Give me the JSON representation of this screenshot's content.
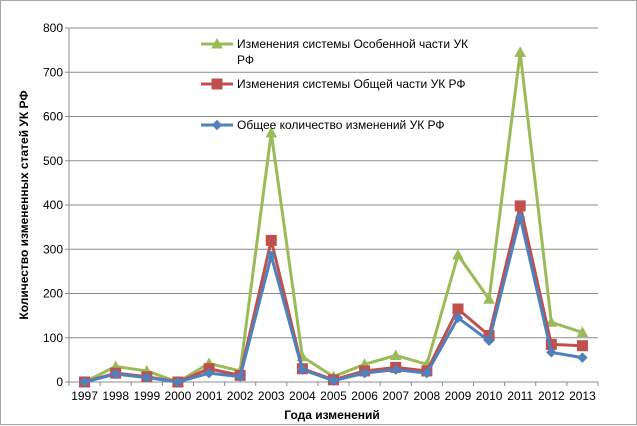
{
  "chart_data": {
    "type": "line",
    "title": "",
    "xlabel": "Года изменений",
    "ylabel": "Количество измененных статей УК РФ",
    "x": [
      "1997",
      "1998",
      "1999",
      "2000",
      "2001",
      "2002",
      "2003",
      "2004",
      "2005",
      "2006",
      "2007",
      "2008",
      "2009",
      "2010",
      "2011",
      "2012",
      "2013"
    ],
    "ylim": [
      0,
      800
    ],
    "yticks": [
      0,
      100,
      200,
      300,
      400,
      500,
      600,
      700,
      800
    ],
    "grid": true,
    "legend_position": "top-center",
    "series": [
      {
        "name_lines": [
          "Изменения системы Особенной части УК",
          "РФ"
        ],
        "color": "#9bbb59",
        "marker": "triangle",
        "values": [
          0,
          35,
          25,
          0,
          42,
          25,
          563,
          57,
          12,
          40,
          60,
          40,
          287,
          187,
          745,
          135,
          112
        ]
      },
      {
        "name_lines": [
          "Изменения системы Общей части УК РФ"
        ],
        "color": "#c0504d",
        "marker": "square",
        "values": [
          0,
          20,
          12,
          0,
          30,
          15,
          320,
          30,
          5,
          25,
          33,
          25,
          165,
          105,
          398,
          85,
          82
        ]
      },
      {
        "name_lines": [
          "Общее количество изменений  УК РФ"
        ],
        "color": "#4f81bd",
        "marker": "diamond",
        "values": [
          0,
          18,
          10,
          0,
          20,
          12,
          285,
          28,
          3,
          20,
          28,
          20,
          145,
          93,
          372,
          67,
          55
        ]
      }
    ]
  }
}
